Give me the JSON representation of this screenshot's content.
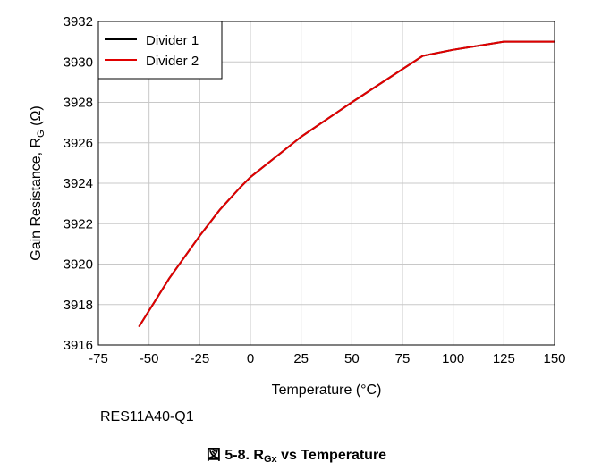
{
  "chart_data": {
    "type": "line",
    "xlabel": "Temperature (°C)",
    "ylabel": {
      "main": "Gain Resistance, R",
      "sub": "G",
      "unit": " (Ω)"
    },
    "xlim": [
      -75,
      150
    ],
    "ylim": [
      3916,
      3932
    ],
    "x_ticks": [
      "-75",
      "-50",
      "-25",
      "0",
      "25",
      "50",
      "75",
      "100",
      "125",
      "150"
    ],
    "y_ticks": [
      "3916",
      "3918",
      "3920",
      "3922",
      "3924",
      "3926",
      "3928",
      "3930",
      "3932"
    ],
    "grid": true,
    "legend_position": "top-left",
    "series": [
      {
        "name": "Divider 1",
        "color": "#000000",
        "x": [
          -55,
          -40,
          -25,
          -15,
          -5,
          0,
          25,
          50,
          85,
          100,
          125,
          150
        ],
        "y": [
          3916.9,
          3919.3,
          3921.4,
          3922.7,
          3923.8,
          3924.3,
          3926.3,
          3928.0,
          3930.3,
          3930.6,
          3931.0,
          3931.0
        ]
      },
      {
        "name": "Divider 2",
        "color": "#e00000",
        "x": [
          -55,
          -40,
          -25,
          -15,
          -5,
          0,
          25,
          50,
          85,
          100,
          125,
          150
        ],
        "y": [
          3916.9,
          3919.3,
          3921.4,
          3922.7,
          3923.8,
          3924.3,
          3926.3,
          3928.0,
          3930.3,
          3930.6,
          3931.0,
          3931.0
        ]
      }
    ]
  },
  "part_number": "RES11A40-Q1",
  "caption": {
    "prefix": "図 5-8. R",
    "sub": "Gx",
    "suffix": " vs Temperature"
  }
}
